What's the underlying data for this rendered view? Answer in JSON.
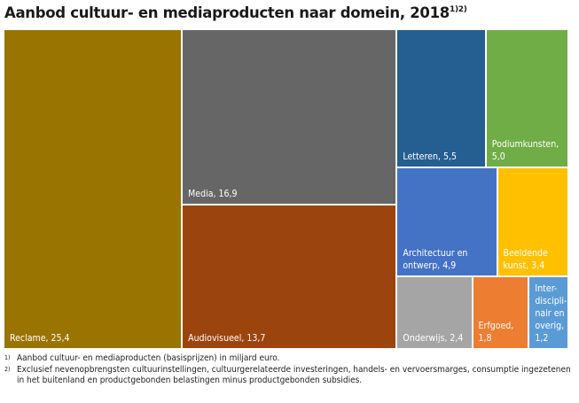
{
  "title": {
    "text": "Aanbod cultuur- en mediaproducten naar domein, 2018",
    "superscript": "1)2)"
  },
  "chart_data": {
    "type": "treemap",
    "title": "Aanbod cultuur- en mediaproducten naar domein, 2018",
    "unit": "miljard euro",
    "items": [
      {
        "name": "Reclame",
        "value": 25.4,
        "label": "Reclame, 25,4",
        "color": "#9A7400"
      },
      {
        "name": "Media",
        "value": 16.9,
        "label": "Media, 16,9",
        "color": "#666666"
      },
      {
        "name": "Audiovisueel",
        "value": 13.7,
        "label": "Audiovisueel, 13,7",
        "color": "#9C440E"
      },
      {
        "name": "Letteren",
        "value": 5.5,
        "label": "Letteren, 5,5",
        "color": "#255E91"
      },
      {
        "name": "Podiumkunsten",
        "value": 5.0,
        "label": "Podiumkunsten,\n5,0",
        "color": "#70AD47"
      },
      {
        "name": "Architectuur en ontwerp",
        "value": 4.9,
        "label": "Architectuur en\nontwerp, 4,9",
        "color": "#4472C4"
      },
      {
        "name": "Beeldende kunst",
        "value": 3.4,
        "label": "Beeldende\nkunst, 3,4",
        "color": "#FFC000"
      },
      {
        "name": "Onderwijs",
        "value": 2.4,
        "label": "Onderwijs, 2,4",
        "color": "#A5A5A5"
      },
      {
        "name": "Erfgoed",
        "value": 1.8,
        "label": "Erfgoed,\n1,8",
        "color": "#ED7D31"
      },
      {
        "name": "Interdisciplinair en overig",
        "value": 1.2,
        "label": "Inter-\ndiscipli-\nnair en\noverig,\n1,2",
        "color": "#5B9BD5"
      }
    ]
  },
  "notes": [
    {
      "mark": "1)",
      "text": "Aanbod cultuur- en mediaproducten (basisprijzen) in miljard euro."
    },
    {
      "mark": "2)",
      "text": "Exclusief nevenopbrengsten cultuurinstellingen, cultuurgerelateerde investeringen, handels- en vervoersmarges, consumptie ingezetenen in het buitenland en productgebonden belastingen minus productgebonden subsidies."
    }
  ]
}
